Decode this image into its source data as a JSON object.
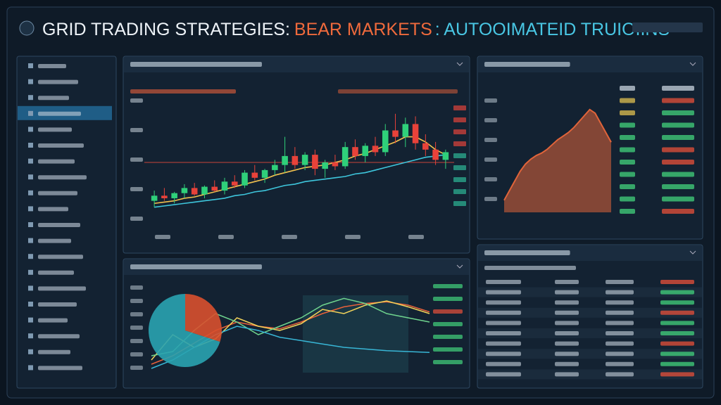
{
  "header": {
    "title_parts": [
      "GRID TRADING STRATEGIES:",
      "BEAR MARKETS",
      ": AUTOOIMATEID TRUIOIINS"
    ]
  },
  "candle_chart": {
    "type": "candlestick",
    "ylim": [
      0,
      100
    ],
    "level": 50,
    "candles": [
      [
        20,
        28,
        15,
        24
      ],
      [
        24,
        30,
        20,
        22
      ],
      [
        22,
        27,
        18,
        26
      ],
      [
        26,
        33,
        22,
        30
      ],
      [
        30,
        34,
        24,
        25
      ],
      [
        25,
        32,
        22,
        31
      ],
      [
        31,
        36,
        27,
        28
      ],
      [
        28,
        38,
        25,
        35
      ],
      [
        35,
        40,
        30,
        32
      ],
      [
        32,
        44,
        30,
        42
      ],
      [
        42,
        48,
        36,
        38
      ],
      [
        38,
        45,
        34,
        44
      ],
      [
        44,
        52,
        40,
        48
      ],
      [
        48,
        70,
        42,
        55
      ],
      [
        55,
        62,
        45,
        48
      ],
      [
        48,
        58,
        44,
        56
      ],
      [
        56,
        60,
        40,
        45
      ],
      [
        45,
        52,
        38,
        50
      ],
      [
        50,
        56,
        44,
        47
      ],
      [
        47,
        66,
        45,
        62
      ],
      [
        62,
        68,
        52,
        55
      ],
      [
        55,
        65,
        50,
        63
      ],
      [
        63,
        70,
        55,
        58
      ],
      [
        58,
        80,
        55,
        75
      ],
      [
        75,
        88,
        65,
        70
      ],
      [
        70,
        85,
        62,
        80
      ],
      [
        80,
        86,
        60,
        65
      ],
      [
        65,
        72,
        55,
        60
      ],
      [
        60,
        66,
        48,
        52
      ],
      [
        52,
        60,
        45,
        58
      ]
    ],
    "series": [
      {
        "color": "#f2c14e",
        "values": [
          18,
          19,
          20,
          22,
          23,
          25,
          27,
          29,
          31,
          33,
          35,
          37,
          40,
          42,
          44,
          46,
          47,
          48,
          50,
          52,
          55,
          57,
          60,
          63,
          66,
          70,
          70,
          66,
          60,
          56
        ]
      },
      {
        "color": "#3ec6dc",
        "values": [
          15,
          16,
          17,
          18,
          19,
          20,
          21,
          22,
          24,
          25,
          27,
          28,
          30,
          32,
          33,
          35,
          36,
          37,
          38,
          39,
          41,
          42,
          44,
          46,
          48,
          50,
          52,
          54,
          55,
          56
        ]
      }
    ]
  },
  "area_chart": {
    "type": "area",
    "ylim": [
      0,
      100
    ],
    "color": "#e0643a",
    "values": [
      10,
      18,
      26,
      34,
      40,
      44,
      47,
      49,
      52,
      56,
      60,
      63,
      66,
      70,
      75,
      80,
      85,
      82,
      74,
      66,
      58
    ]
  },
  "pie_chart": {
    "type": "pie",
    "values": [
      30,
      70
    ],
    "colors": [
      "#d9502e",
      "#2aa3b0"
    ]
  },
  "line_chart": {
    "type": "line",
    "ylim": [
      0,
      100
    ],
    "series": [
      {
        "color": "#e8613a",
        "values": [
          10,
          20,
          35,
          50,
          60,
          55,
          52,
          60,
          70,
          78,
          82,
          84,
          80,
          72
        ]
      },
      {
        "color": "#f2d35a",
        "values": [
          15,
          45,
          30,
          40,
          65,
          55,
          50,
          58,
          75,
          70,
          80,
          85,
          78,
          70
        ]
      },
      {
        "color": "#6fd48e",
        "values": [
          20,
          25,
          50,
          70,
          60,
          45,
          55,
          65,
          80,
          88,
          82,
          70,
          65,
          60
        ]
      },
      {
        "color": "#38b6d6",
        "values": [
          5,
          15,
          30,
          45,
          55,
          50,
          42,
          38,
          34,
          30,
          28,
          26,
          25,
          24
        ]
      }
    ]
  }
}
